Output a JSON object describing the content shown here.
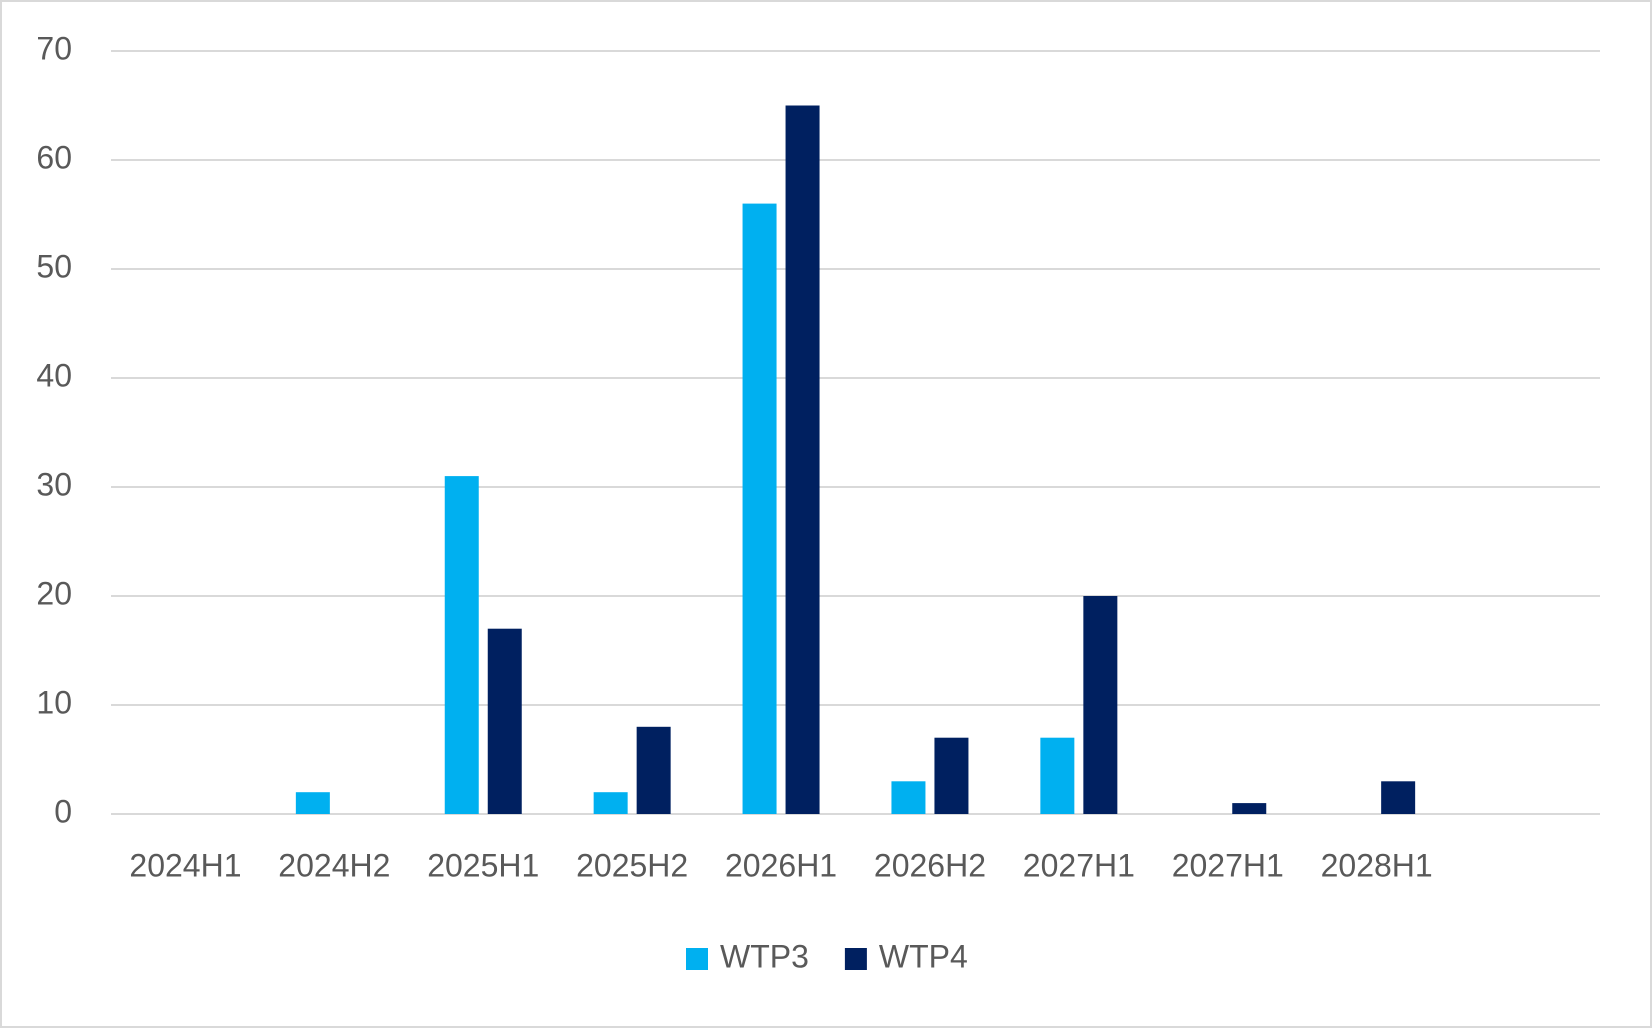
{
  "chart_data": {
    "type": "bar",
    "categories": [
      "2024H1",
      "2024H2",
      "2025H1",
      "2025H2",
      "2026H1",
      "2026H2",
      "2027H1",
      "2027H1",
      "2028H1",
      null
    ],
    "series": [
      {
        "name": "WTP3",
        "color": "#00b0f0",
        "values": [
          null,
          2,
          31,
          2,
          56,
          3,
          7,
          null,
          null,
          null
        ]
      },
      {
        "name": "WTP4",
        "color": "#002060",
        "values": [
          null,
          null,
          17,
          8,
          65,
          7,
          20,
          1,
          3,
          null
        ]
      }
    ],
    "ylim": [
      0,
      70
    ],
    "yticks": [
      0,
      10,
      20,
      30,
      40,
      50,
      60,
      70
    ],
    "grid": true,
    "legend": "bottom"
  }
}
